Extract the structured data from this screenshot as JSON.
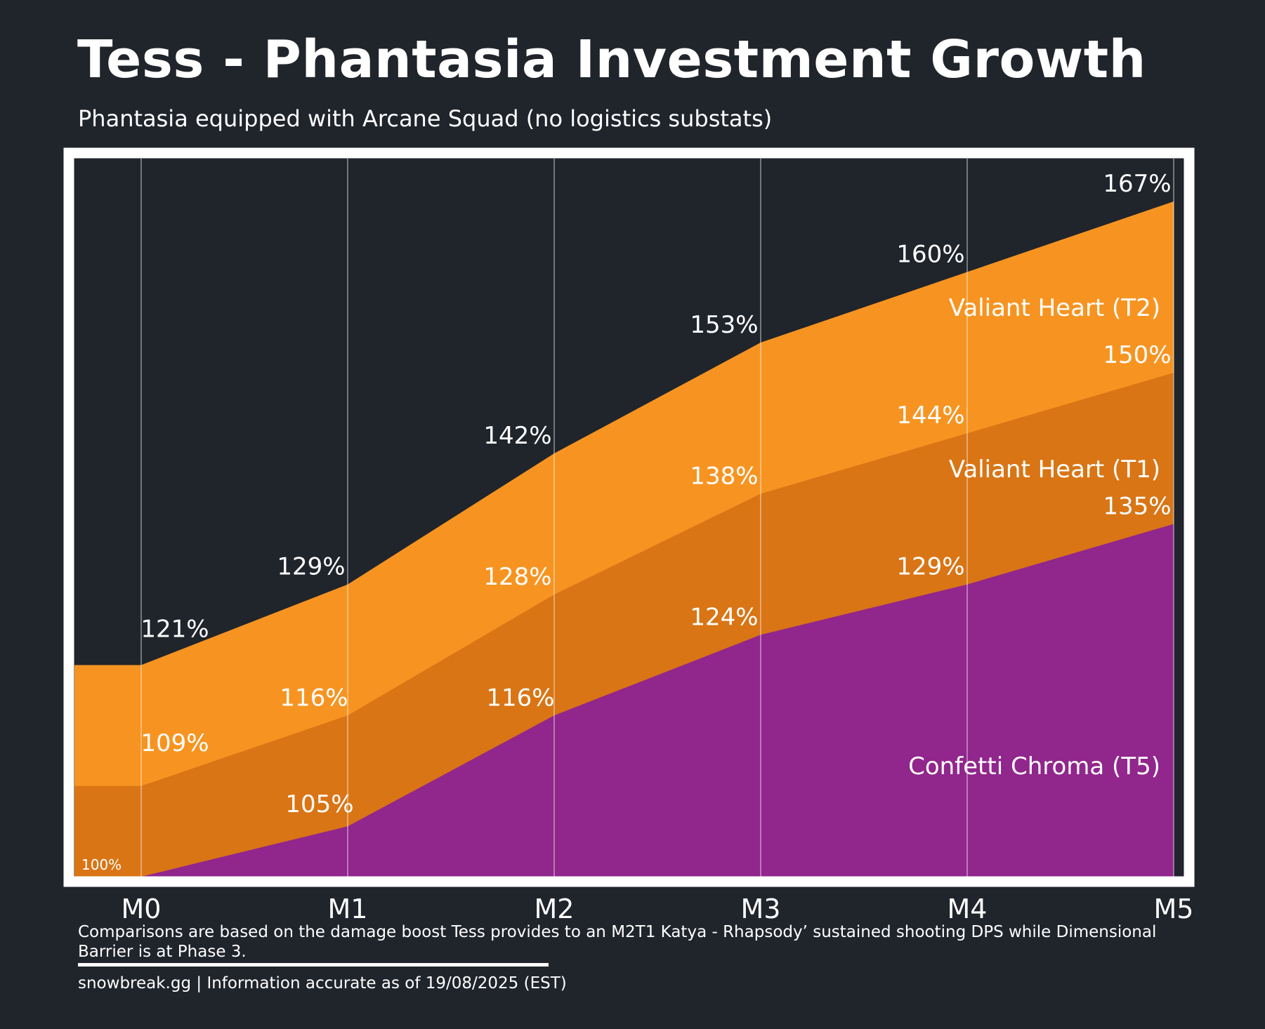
{
  "title": "Tess - Phantasia Investment Growth",
  "subtitle": "Phantasia equipped with Arcane Squad (no logistics substats)",
  "note": "Comparisons are based on the damage boost Tess provides to an M2T1 Katya - Rhapsody’ sustained shooting DPS while Dimensional Barrier is at Phase 3.",
  "footer": "snowbreak.gg | Information accurate as of 19/08/2025 (EST)",
  "colors": {
    "background": "#20242b",
    "t2": "#f79421",
    "t1": "#d97515",
    "t5": "#91268c",
    "frame": "#ffffff"
  },
  "chart_data": {
    "type": "area",
    "categories": [
      "M0",
      "M1",
      "M2",
      "M3",
      "M4",
      "M5"
    ],
    "baseline_label": "100%",
    "baseline": 100,
    "ylim": [
      100,
      175
    ],
    "grid": "vertical lines at each category",
    "series": [
      {
        "name": "Confetti Chroma (T5)",
        "color": "#91268c",
        "values": [
          100,
          105,
          116,
          124,
          129,
          135
        ],
        "labels": [
          "",
          "105%",
          "116%",
          "124%",
          "129%",
          "135%"
        ]
      },
      {
        "name": "Valiant Heart (T1)",
        "color": "#d97515",
        "values": [
          109,
          116,
          128,
          138,
          144,
          150
        ],
        "labels": [
          "109%",
          "116%",
          "128%",
          "138%",
          "144%",
          "150%"
        ]
      },
      {
        "name": "Valiant Heart (T2)",
        "color": "#f79421",
        "values": [
          121,
          129,
          142,
          153,
          160,
          167
        ],
        "labels": [
          "121%",
          "129%",
          "142%",
          "153%",
          "160%",
          "167%"
        ]
      }
    ]
  }
}
